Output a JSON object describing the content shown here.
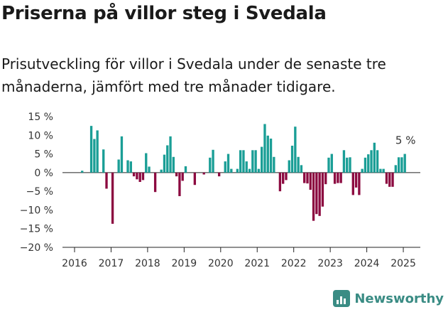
{
  "title": "Priserna på villor steg i Svedala",
  "subtitle": "Prisutveckling för villor i Svedala under de senaste tre månaderna, jämfört med tre månader tidigare.",
  "brand": {
    "name": "Newsworthy",
    "icon": "newsworthy-logo-icon"
  },
  "colors": {
    "positive": "#1a9e96",
    "negative": "#8c0a40",
    "axis": "#222222",
    "grid": "#222222"
  },
  "chart_data": {
    "type": "bar",
    "ylim": [
      -20,
      15
    ],
    "yticks": [
      15,
      10,
      5,
      0,
      -5,
      -10,
      -15,
      -20
    ],
    "ytick_labels": [
      "15 %",
      "10 %",
      "5 %",
      "0 %",
      "−5 %",
      "−10 %",
      "−15 %",
      "−20 %"
    ],
    "xticks": [
      2016,
      2017,
      2018,
      2019,
      2020,
      2021,
      2022,
      2023,
      2024,
      2025
    ],
    "grid": false,
    "annotation": "5 %",
    "x_start": "2016-03",
    "values": [
      0.5,
      0,
      0,
      12.5,
      9,
      11.3,
      0,
      6.2,
      -4.3,
      0,
      -13.7,
      0,
      3.5,
      9.7,
      0,
      3.3,
      3,
      -1,
      -1.8,
      -2.5,
      -2,
      5.2,
      1.6,
      0,
      -5.2,
      0,
      0.8,
      4.8,
      7.3,
      9.7,
      4.2,
      -1,
      -6.3,
      -2.2,
      1.7,
      0,
      0,
      -3.3,
      0,
      0,
      -0.5,
      0,
      4,
      6.1,
      0,
      -1,
      0,
      3,
      5,
      1,
      0,
      1,
      6,
      6,
      3,
      1,
      6,
      6,
      1,
      6.9,
      13,
      9.9,
      9.1,
      4.2,
      0,
      -5,
      -3,
      -2,
      3.3,
      7.2,
      12.3,
      4.2,
      2,
      -2.8,
      -2.9,
      -4.6,
      -12.9,
      -11.1,
      -11.6,
      -9.1,
      -3.1,
      4,
      5,
      -3,
      -2.8,
      -2.8,
      6,
      4,
      4.1,
      -6,
      -4,
      -6,
      1,
      4,
      4.9,
      6,
      8,
      6,
      1,
      1,
      -3,
      -3.8,
      -3.8,
      2,
      4.1,
      4.1,
      5
    ]
  }
}
